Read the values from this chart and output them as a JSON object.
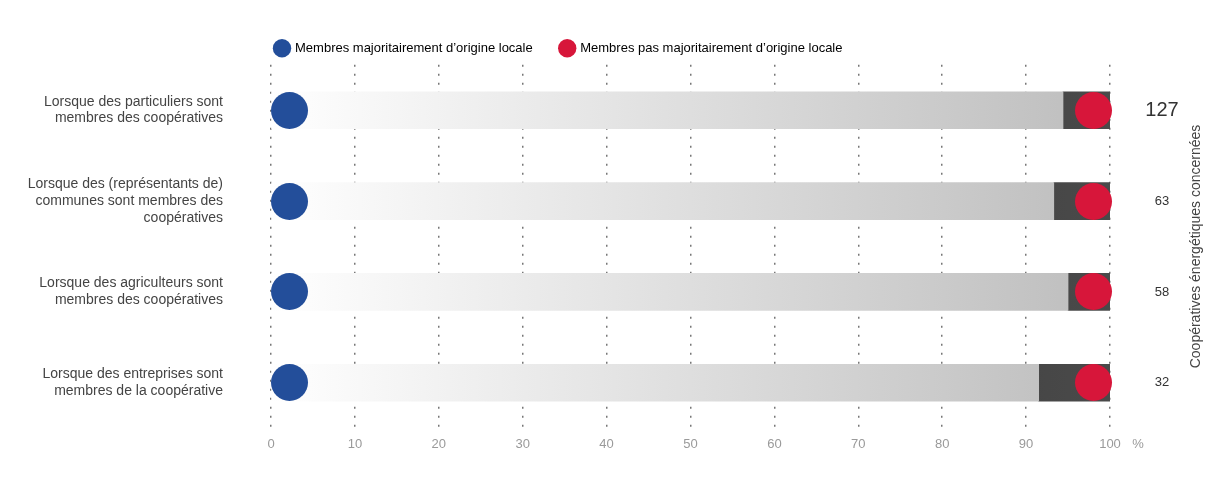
{
  "chart_data": {
    "type": "bar",
    "orientation": "horizontal",
    "stacked": true,
    "categories": [
      "Lorsque des particuliers sont membres des coopératives",
      "Lorsque des (représentants de) communes sont membres des coopératives",
      "Lorsque des agriculteurs sont membres des coopératives",
      "Lorsque des entreprises sont membres de la coopérative"
    ],
    "series": [
      {
        "name": "Membres majoritairement d’origine locale",
        "color": "#234e9a",
        "values": [
          94.4,
          93.3,
          95.0,
          91.5
        ]
      },
      {
        "name": "Membres pas majoritairement d’origine locale",
        "color": "#d7163a",
        "values": [
          5.6,
          6.7,
          5.0,
          8.5
        ]
      }
    ],
    "xlim": [
      0,
      100
    ],
    "xticks": [
      0,
      10,
      20,
      30,
      40,
      50,
      60,
      70,
      80,
      90,
      100
    ],
    "xlabel": "%",
    "y2label": "Coopératives énergétiques concernées",
    "annotations": [
      "127",
      "63",
      "58",
      "32"
    ],
    "grid": "x",
    "legend": "top"
  }
}
